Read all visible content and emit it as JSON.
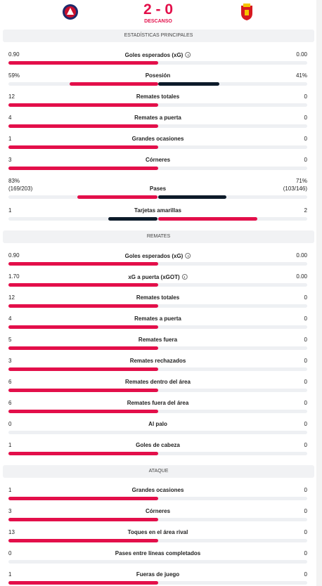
{
  "header": {
    "score": "2 - 0",
    "status": "DESCANSO"
  },
  "sections": [
    {
      "title": "ESTADÍSTICAS PRINCIPALES",
      "rows": [
        {
          "label": "Goles esperados (xG)",
          "home": "0.90",
          "away": "0.00",
          "info": true
        },
        {
          "label": "Posesión",
          "home": "59%",
          "away": "41%"
        },
        {
          "label": "Remates totales",
          "home": "12",
          "away": "0"
        },
        {
          "label": "Remates a puerta",
          "home": "4",
          "away": "0"
        },
        {
          "label": "Grandes ocasiones",
          "home": "1",
          "away": "0"
        },
        {
          "label": "Córneres",
          "home": "3",
          "away": "0"
        },
        {
          "label": "Pases",
          "home": "83%",
          "away": "71%",
          "home_detail": "(169/203)",
          "away_detail": "(103/146)"
        },
        {
          "label": "Tarjetas amarillas",
          "home": "1",
          "away": "2"
        }
      ]
    },
    {
      "title": "REMATES",
      "rows": [
        {
          "label": "Goles esperados (xG)",
          "home": "0.90",
          "away": "0.00",
          "info": true
        },
        {
          "label": "xG a puerta (xGOT)",
          "home": "1.70",
          "away": "0.00",
          "info": true
        },
        {
          "label": "Remates totales",
          "home": "12",
          "away": "0"
        },
        {
          "label": "Remates a puerta",
          "home": "4",
          "away": "0"
        },
        {
          "label": "Remates fuera",
          "home": "5",
          "away": "0"
        },
        {
          "label": "Remates rechazados",
          "home": "3",
          "away": "0"
        },
        {
          "label": "Remates dentro del área",
          "home": "6",
          "away": "0"
        },
        {
          "label": "Remates fuera del área",
          "home": "6",
          "away": "0"
        },
        {
          "label": "Al palo",
          "home": "0",
          "away": "0"
        },
        {
          "label": "Goles de cabeza",
          "home": "1",
          "away": "0"
        }
      ]
    },
    {
      "title": "ATAQUE",
      "rows": [
        {
          "label": "Grandes ocasiones",
          "home": "1",
          "away": "0"
        },
        {
          "label": "Córneres",
          "home": "3",
          "away": "0"
        },
        {
          "label": "Toques en el área rival",
          "home": "13",
          "away": "0"
        },
        {
          "label": "Pases entre líneas completados",
          "home": "0",
          "away": "0"
        },
        {
          "label": "Fueras de juego",
          "home": "1",
          "away": "0"
        }
      ]
    }
  ]
}
